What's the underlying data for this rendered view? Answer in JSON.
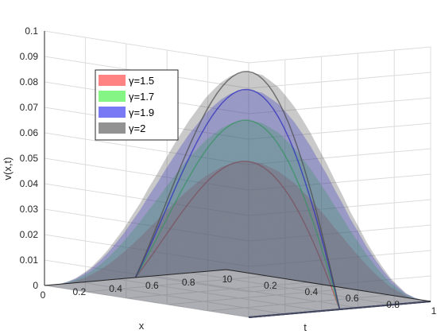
{
  "chart_data": {
    "type": "surface3d",
    "xlabel": "x",
    "ylabel": "t",
    "zlabel": "v(x,t)",
    "xlim": [
      0,
      1
    ],
    "ylim": [
      0,
      1
    ],
    "zlim": [
      0,
      0.1
    ],
    "x_ticks": [
      "0",
      "0.2",
      "0.4",
      "0.6",
      "0.8",
      "1"
    ],
    "y_ticks": [
      "0",
      "0.2",
      "0.4",
      "0.6",
      "0.8",
      "1"
    ],
    "z_ticks": [
      "0",
      "0.01",
      "0.02",
      "0.03",
      "0.04",
      "0.05",
      "0.06",
      "0.07",
      "0.08",
      "0.09",
      "0.1"
    ],
    "grid": true,
    "legend_position": "top-left",
    "series": [
      {
        "name": "γ=1.5",
        "color": "#ff3030",
        "peak": 0.052
      },
      {
        "name": "γ=1.7",
        "color": "#33ee33",
        "peak": 0.068
      },
      {
        "name": "γ=1.9",
        "color": "#2020ee",
        "peak": 0.08
      },
      {
        "name": "γ=2",
        "color": "#4a4a4a",
        "peak": 0.087
      }
    ]
  }
}
